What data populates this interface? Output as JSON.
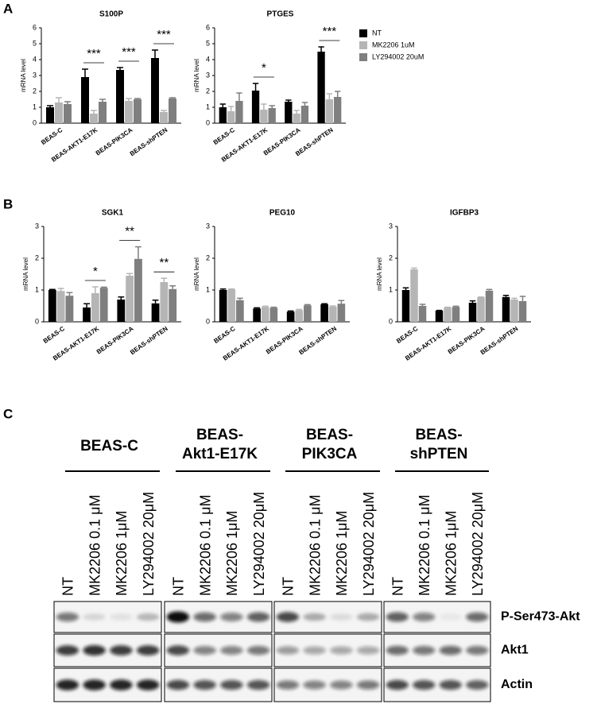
{
  "panel_labels": [
    "A",
    "B",
    "C"
  ],
  "chart_data": [
    {
      "type": "bar",
      "title": "S100P",
      "y_label": "mRNA level",
      "categories": [
        "BEAS-C",
        "BEAS-AKT1-E17K",
        "BEAS-PIK3CA",
        "BEAS-shPTEN"
      ],
      "series": [
        {
          "name": "NT",
          "color": "#000000",
          "values": [
            1.0,
            2.9,
            3.35,
            4.1
          ],
          "errors": [
            0.1,
            0.5,
            0.15,
            0.5
          ]
        },
        {
          "name": "MK2206 1uM",
          "color": "#b5b5b5",
          "values": [
            1.3,
            0.6,
            1.4,
            0.7
          ],
          "errors": [
            0.3,
            0.2,
            0.15,
            0.1
          ]
        },
        {
          "name": "LY294002 20uM",
          "color": "#7f7f7f",
          "values": [
            1.2,
            1.35,
            1.5,
            1.55
          ],
          "errors": [
            0.15,
            0.15,
            0.05,
            0.05
          ]
        }
      ],
      "significance": [
        null,
        "***",
        "***",
        "***"
      ],
      "ylim": [
        0,
        6
      ],
      "yticks": [
        0,
        1,
        2,
        3,
        4,
        5,
        6
      ]
    },
    {
      "type": "bar",
      "title": "PTGES",
      "y_label": "mRNA level",
      "categories": [
        "BEAS-C",
        "BEAS-AKT1-E17K",
        "BEAS-PIK3CA",
        "BEAS-shPTEN"
      ],
      "series": [
        {
          "values": [
            1.0,
            2.05,
            1.35,
            4.5
          ],
          "errors": [
            0.2,
            0.45,
            0.1,
            0.3
          ]
        },
        {
          "values": [
            0.75,
            0.85,
            0.6,
            1.5
          ],
          "errors": [
            0.3,
            0.35,
            0.2,
            0.35
          ]
        },
        {
          "values": [
            1.4,
            0.95,
            1.1,
            1.65
          ],
          "errors": [
            0.5,
            0.15,
            0.2,
            0.35
          ]
        }
      ],
      "significance": [
        null,
        "*",
        null,
        "***"
      ],
      "ylim": [
        0,
        6
      ],
      "yticks": [
        0,
        1,
        2,
        3,
        4,
        5,
        6
      ]
    },
    {
      "type": "bar",
      "title": "SGK1",
      "y_label": "mRNA level",
      "categories": [
        "BEAS-C",
        "BEAS-AKT1-E17K",
        "BEAS-PIK3CA",
        "BEAS-shPTEN"
      ],
      "series": [
        {
          "values": [
            1.0,
            0.45,
            0.7,
            0.58
          ],
          "errors": [
            0.02,
            0.12,
            0.08,
            0.1
          ]
        },
        {
          "values": [
            0.97,
            0.9,
            1.45,
            1.25
          ],
          "errors": [
            0.08,
            0.2,
            0.07,
            0.12
          ]
        },
        {
          "values": [
            0.82,
            1.07,
            1.98,
            1.03
          ],
          "errors": [
            0.1,
            0.02,
            0.38,
            0.1
          ]
        }
      ],
      "significance": [
        null,
        "*",
        "**",
        "**"
      ],
      "ylim": [
        0,
        3
      ],
      "yticks": [
        0,
        1,
        2,
        3
      ]
    },
    {
      "type": "bar",
      "title": "PEG10",
      "y_label": "mRNA level",
      "categories": [
        "BEAS-C",
        "BEAS-AKT1-E17K",
        "BEAS-PIK3CA",
        "BEAS-shPTEN"
      ],
      "series": [
        {
          "values": [
            1.0,
            0.42,
            0.32,
            0.55
          ],
          "errors": [
            0.03,
            0.02,
            0.02,
            0.02
          ]
        },
        {
          "values": [
            1.02,
            0.47,
            0.37,
            0.48
          ],
          "errors": [
            0.01,
            0.02,
            0.02,
            0.02
          ]
        },
        {
          "values": [
            0.68,
            0.44,
            0.52,
            0.57
          ],
          "errors": [
            0.06,
            0.02,
            0.02,
            0.1
          ]
        }
      ],
      "ylim": [
        0,
        3
      ],
      "yticks": [
        0,
        1,
        2,
        3
      ]
    },
    {
      "type": "bar",
      "title": "IGFBP3",
      "y_label": "mRNA level",
      "categories": [
        "BEAS-C",
        "BEAS-AKT1-E17K",
        "BEAS-PIK3CA",
        "BEAS-shPTEN"
      ],
      "series": [
        {
          "values": [
            1.0,
            0.35,
            0.6,
            0.78
          ],
          "errors": [
            0.07,
            0.01,
            0.06,
            0.05
          ]
        },
        {
          "values": [
            1.65,
            0.45,
            0.77,
            0.7
          ],
          "errors": [
            0.04,
            0.01,
            0.01,
            0.04
          ]
        },
        {
          "values": [
            0.5,
            0.47,
            0.98,
            0.65
          ],
          "errors": [
            0.05,
            0.02,
            0.04,
            0.15
          ]
        }
      ],
      "ylim": [
        0,
        3
      ],
      "yticks": [
        0,
        1,
        2,
        3
      ]
    }
  ],
  "blot": {
    "groups": [
      {
        "label_lines": [
          "BEAS-C"
        ],
        "lanes": [
          "NT",
          "MK2206 0.1 μM",
          "MK2206 1μM",
          "LY294002 20μM"
        ]
      },
      {
        "label_lines": [
          "BEAS-",
          "Akt1-E17K"
        ],
        "lanes": [
          "NT",
          "MK2206 0.1 μM",
          "MK2206 1μM",
          "LY294002 20μM"
        ]
      },
      {
        "label_lines": [
          "BEAS-",
          "PIK3CA"
        ],
        "lanes": [
          "NT",
          "MK2206 0.1 μM",
          "MK2206 1μM",
          "LY294002 20μM"
        ]
      },
      {
        "label_lines": [
          "BEAS-",
          "shPTEN"
        ],
        "lanes": [
          "NT",
          "MK2206 0.1 μM",
          "MK2206 1μM",
          "LY294002 20μM"
        ]
      }
    ],
    "rows": [
      "P-Ser473-Akt",
      "Akt1",
      "Actin"
    ]
  }
}
